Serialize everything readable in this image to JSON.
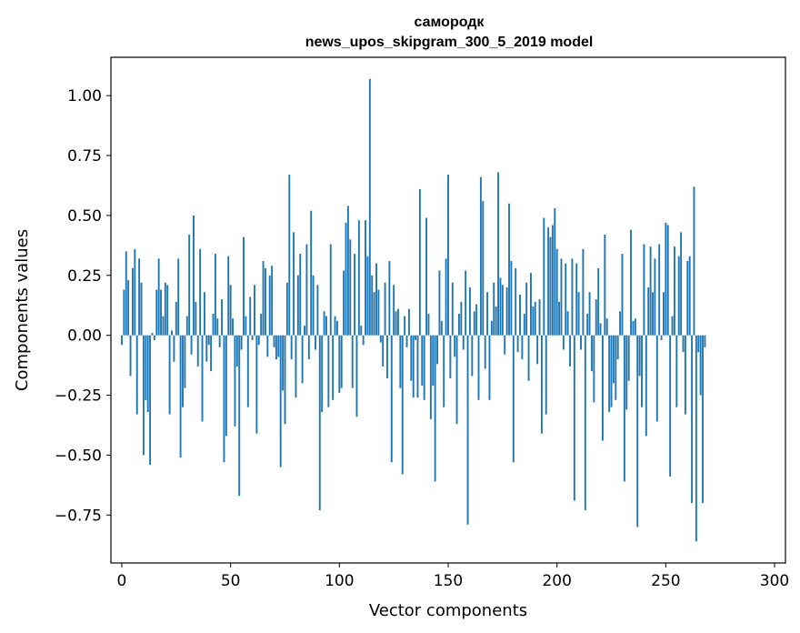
{
  "chart_data": {
    "type": "bar",
    "title": "самородк",
    "subtitle": "news_upos_skipgram_300_5_2019 model",
    "xlabel": "Vector components",
    "ylabel": "Components values",
    "xlim": [
      -5,
      305
    ],
    "ylim": [
      -0.95,
      1.16
    ],
    "xticks": [
      0,
      50,
      100,
      150,
      200,
      250,
      300
    ],
    "xtick_labels": [
      "0",
      "50",
      "100",
      "150",
      "200",
      "250",
      "300"
    ],
    "yticks": [
      -0.75,
      -0.5,
      -0.25,
      0.0,
      0.25,
      0.5,
      0.75,
      1.0
    ],
    "ytick_labels": [
      "−0.75",
      "−0.50",
      "−0.25",
      "0.00",
      "0.25",
      "0.50",
      "0.75",
      "1.00"
    ],
    "bar_color": "#1f77b4",
    "values": [
      -0.04,
      0.19,
      0.35,
      0.23,
      -0.17,
      0.28,
      0.36,
      -0.33,
      0.32,
      0.22,
      -0.5,
      -0.27,
      -0.32,
      -0.54,
      0.01,
      -0.02,
      0.19,
      0.32,
      0.19,
      0.08,
      0.22,
      0.21,
      -0.33,
      0.02,
      -0.11,
      0.14,
      0.32,
      -0.51,
      -0.3,
      -0.22,
      0.08,
      0.42,
      -0.08,
      0.5,
      0.14,
      -0.13,
      0.36,
      -0.36,
      0.18,
      -0.11,
      -0.04,
      -0.15,
      0.09,
      0.34,
      0.07,
      -0.05,
      0.15,
      -0.53,
      -0.42,
      0.33,
      0.21,
      0.07,
      -0.38,
      -0.13,
      -0.67,
      -0.06,
      0.41,
      0.08,
      -0.3,
      0.16,
      -0.02,
      0.21,
      -0.41,
      -0.04,
      0.09,
      0.31,
      0.28,
      -0.09,
      0.25,
      0.29,
      -0.05,
      -0.1,
      -0.09,
      -0.55,
      -0.23,
      -0.37,
      0.22,
      0.67,
      -0.1,
      0.43,
      -0.26,
      0.25,
      0.34,
      -0.2,
      0.04,
      0.38,
      -0.1,
      0.52,
      0.25,
      -0.06,
      0.21,
      -0.73,
      -0.32,
      0.1,
      0.08,
      -0.3,
      0.38,
      -0.27,
      0.08,
      0.06,
      -0.24,
      -0.22,
      0.27,
      0.47,
      0.54,
      0.4,
      -0.22,
      0.34,
      -0.34,
      0.48,
      0.04,
      -0.04,
      0.48,
      0.33,
      1.07,
      0.25,
      0.18,
      0.3,
      0.19,
      -0.03,
      -0.13,
      0.22,
      -0.18,
      0.31,
      -0.53,
      0.21,
      0.1,
      0.11,
      -0.22,
      -0.58,
      0.08,
      -0.05,
      0.11,
      -0.19,
      -0.26,
      -0.02,
      -0.26,
      0.61,
      -0.21,
      -0.27,
      0.49,
      0.09,
      -0.35,
      -0.21,
      -0.61,
      -0.12,
      0.27,
      0.06,
      -0.3,
      0.32,
      0.67,
      -0.18,
      0.22,
      -0.09,
      -0.37,
      0.09,
      0.14,
      -0.06,
      0.27,
      -0.79,
      0.2,
      -0.17,
      0.1,
      0.13,
      -0.27,
      0.66,
      0.56,
      -0.14,
      0.18,
      -0.27,
      0.06,
      0.22,
      0.12,
      0.68,
      0.24,
      0.21,
      -0.08,
      0.2,
      0.55,
      0.31,
      -0.53,
      0.28,
      -0.07,
      0.17,
      -0.1,
      0.09,
      0.22,
      -0.19,
      0.26,
      0.12,
      0.14,
      -0.12,
      0.15,
      -0.41,
      0.49,
      -0.33,
      0.45,
      0.41,
      0.46,
      0.53,
      0.36,
      0.14,
      0.32,
      -0.06,
      0.3,
      0.1,
      -0.13,
      0.32,
      -0.69,
      0.3,
      0.18,
      -0.06,
      0.36,
      -0.73,
      0.09,
      0.18,
      -0.15,
      -0.28,
      0.15,
      0.28,
      0.05,
      -0.44,
      0.42,
      0.07,
      -0.32,
      -0.3,
      -0.2,
      -0.27,
      -0.1,
      0.1,
      0.34,
      -0.61,
      -0.31,
      -0.19,
      0.44,
      0.06,
      0.07,
      -0.8,
      -0.17,
      -0.3,
      0.38,
      -0.42,
      0.2,
      0.37,
      0.18,
      0.32,
      -0.36,
      0.38,
      -0.02,
      0.18,
      0.47,
      0.46,
      -0.59,
      0.08,
      0.37,
      -0.3,
      0.33,
      0.43,
      -0.07,
      -0.33,
      0.31,
      0.33,
      -0.7,
      0.62,
      -0.86,
      -0.07,
      -0.25,
      -0.7,
      -0.05
    ]
  }
}
